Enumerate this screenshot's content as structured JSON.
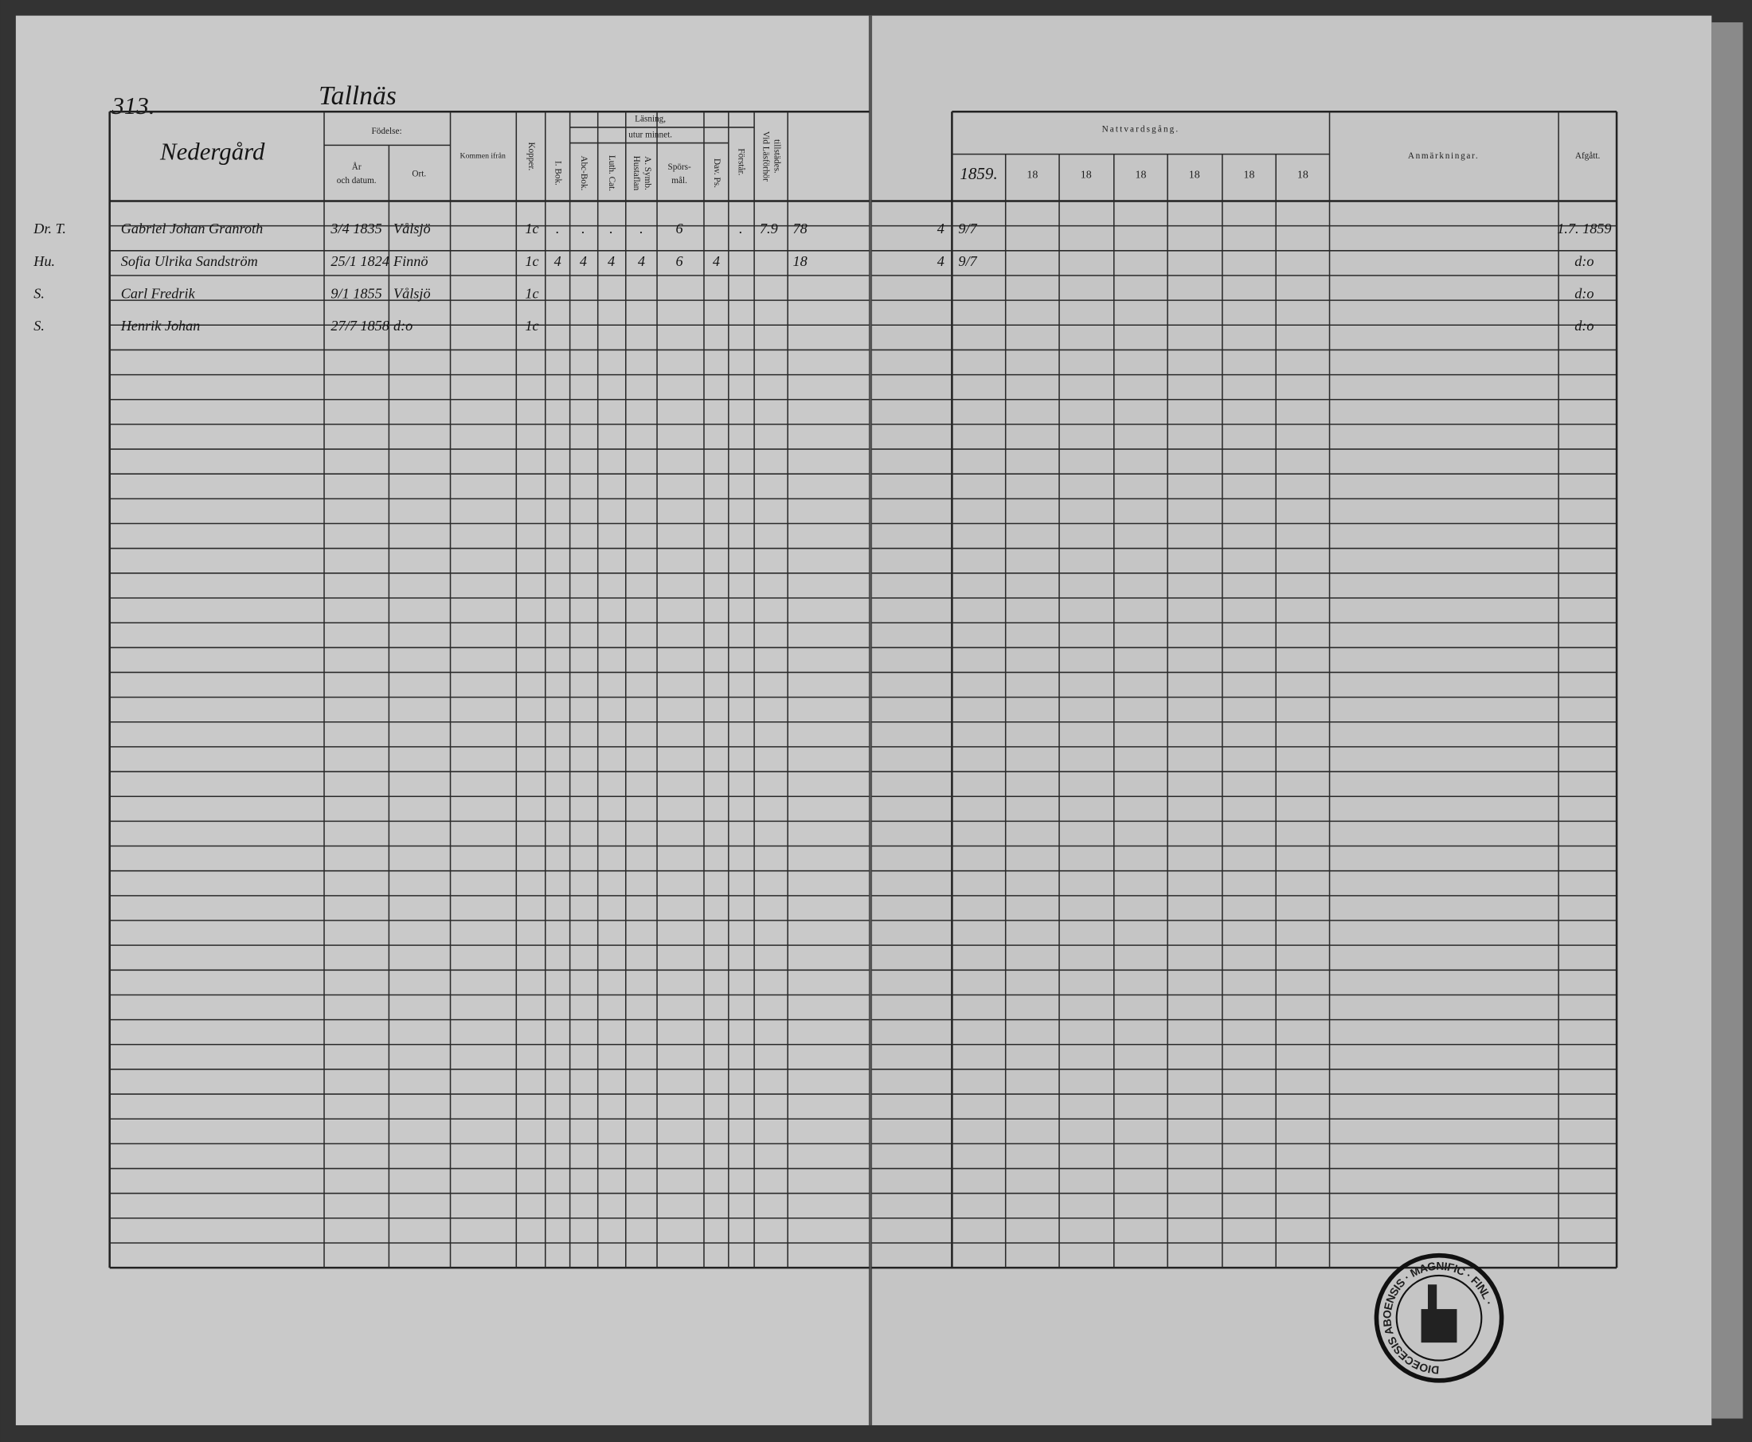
{
  "page_number": "313.",
  "village": "Tallnäs",
  "farm": "Nedergård",
  "headers": {
    "fodelse": "Födelse:",
    "ar_datum": [
      "År",
      "och datum."
    ],
    "ort": "Ort.",
    "kommen": "Kommen ifrån",
    "kopper": "Kopper.",
    "lasning": "Läsning,",
    "utur_minnet": "utur minnet.",
    "i_bok": "I. Bok.",
    "abc": "Abc-Bok.",
    "luth": "Luth. Cat.",
    "hustaflan": [
      "Hustaflan",
      "A. Symb."
    ],
    "sporsmal": [
      "Spörs-",
      "mål."
    ],
    "dav": "Dav. Ps.",
    "forstar": "Förstår.",
    "tillstades": [
      "Vid Läsförhör",
      "tillstädes."
    ],
    "nattvard": "Nattvardsgång.",
    "years": [
      "1859.",
      "18",
      "18",
      "18",
      "18",
      "18",
      "18"
    ],
    "anm": "Anmärkningar.",
    "afgatt": "Afgått."
  },
  "entries": [
    {
      "margin": "Dr. T.",
      "name": "Gabriel Johan Granroth",
      "date": "3/4 1835",
      "place": "Vålsjö",
      "kopper": "1c",
      "i_bok": ".",
      "abc": ".",
      "luth": ".",
      "hustaflan": ".",
      "sporsmal": "6",
      "forstar": ".",
      "tillstades": "7.9",
      "extra": "78",
      "mid": "4",
      "n1859": "9/7",
      "afgatt": "1.7. 1859"
    },
    {
      "margin": "Hu.",
      "name": "Sofia Ulrika Sandström",
      "date": "25/1 1824",
      "place": "Finnö",
      "kopper": "1c",
      "i_bok": "4",
      "abc": "4",
      "luth": "4",
      "hustaflan": "4",
      "sporsmal": "6",
      "dav": "4",
      "extra": "18",
      "mid": "4",
      "n1859": "9/7",
      "afgatt": "d:o"
    },
    {
      "margin": "S.",
      "name": "Carl Fredrik",
      "date": "9/1 1855",
      "place": "Vålsjö",
      "kopper": "1c",
      "afgatt": "d:o"
    },
    {
      "margin": "S.",
      "name": "Henrik Johan",
      "date": "27/7 1858",
      "place": "d:o",
      "kopper": "1c",
      "afgatt": "d:o"
    }
  ],
  "stamp": "DIOECESIS ABOENSIS · MAGNIFIC · FINL ·"
}
